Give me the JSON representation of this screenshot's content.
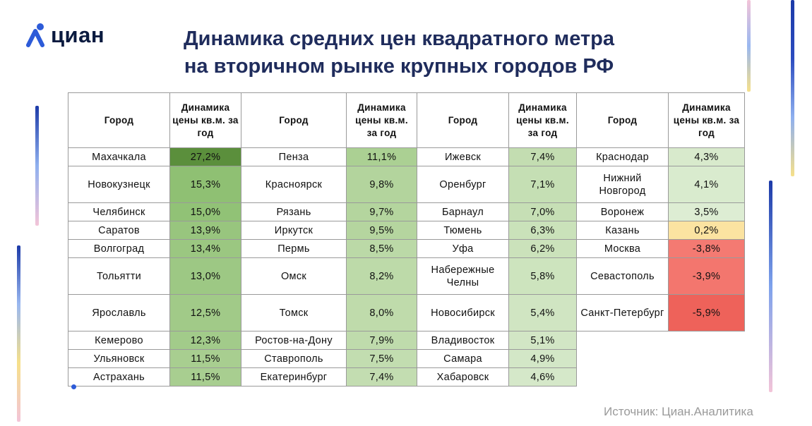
{
  "brand": {
    "name": "циан"
  },
  "title": {
    "line1": "Динамика средних цен квадратного метра",
    "line2": "на вторичном рынке крупных городов РФ"
  },
  "table": {
    "header_city": "Город",
    "header_change": "Динамика цены кв.м. за год",
    "columns": [
      [
        {
          "city": "Махачкала",
          "value": "27,2%",
          "color": "#5b8f3c"
        },
        {
          "city": "Новокузнецк",
          "value": "15,3%",
          "color": "#8fc073"
        },
        {
          "city": "Челябинск",
          "value": "15,0%",
          "color": "#91c276"
        },
        {
          "city": "Саратов",
          "value": "13,9%",
          "color": "#98c57e"
        },
        {
          "city": "Волгоград",
          "value": "13,4%",
          "color": "#9bc781"
        },
        {
          "city": "Тольятти",
          "value": "13,0%",
          "color": "#9dc884"
        },
        {
          "city": "Ярославль",
          "value": "12,5%",
          "color": "#a1ca88"
        },
        {
          "city": "Кемерово",
          "value": "12,3%",
          "color": "#a2cb8a"
        },
        {
          "city": "Ульяновск",
          "value": "11,5%",
          "color": "#a8ce90"
        },
        {
          "city": "Астрахань",
          "value": "11,5%",
          "color": "#a8ce90"
        }
      ],
      [
        {
          "city": "Пенза",
          "value": "11,1%",
          "color": "#abd093"
        },
        {
          "city": "Красноярск",
          "value": "9,8%",
          "color": "#b3d49d"
        },
        {
          "city": "Рязань",
          "value": "9,7%",
          "color": "#b4d59e"
        },
        {
          "city": "Иркутск",
          "value": "9,5%",
          "color": "#b5d59f"
        },
        {
          "city": "Пермь",
          "value": "8,5%",
          "color": "#bbd9a7"
        },
        {
          "city": "Омск",
          "value": "8,2%",
          "color": "#bddaa9"
        },
        {
          "city": "Томск",
          "value": "8,0%",
          "color": "#bfdbab"
        },
        {
          "city": "Ростов-на-Дону",
          "value": "7,9%",
          "color": "#bfdbac"
        },
        {
          "city": "Ставрополь",
          "value": "7,5%",
          "color": "#c2ddb0"
        },
        {
          "city": "Екатеринбург",
          "value": "7,4%",
          "color": "#c3ddb1"
        }
      ],
      [
        {
          "city": "Ижевск",
          "value": "7,4%",
          "color": "#c3ddb1"
        },
        {
          "city": "Оренбург",
          "value": "7,1%",
          "color": "#c5dfb4"
        },
        {
          "city": "Барнаул",
          "value": "7,0%",
          "color": "#c6dfb5"
        },
        {
          "city": "Тюмень",
          "value": "6,3%",
          "color": "#cae2ba"
        },
        {
          "city": "Уфа",
          "value": "6,2%",
          "color": "#cbe2bb"
        },
        {
          "city": "Набережные Челны",
          "value": "5,8%",
          "color": "#cde4be"
        },
        {
          "city": "Новосибирск",
          "value": "5,4%",
          "color": "#d0e5c2"
        },
        {
          "city": "Владивосток",
          "value": "5,1%",
          "color": "#d2e6c5"
        },
        {
          "city": "Самара",
          "value": "4,9%",
          "color": "#d3e7c7"
        },
        {
          "city": "Хабаровск",
          "value": "4,6%",
          "color": "#d5e8c9"
        }
      ],
      [
        {
          "city": "Краснодар",
          "value": "4,3%",
          "color": "#d8eacc"
        },
        {
          "city": "Нижний Новгород",
          "value": "4,1%",
          "color": "#d9ebce"
        },
        {
          "city": "Воронеж",
          "value": "3,5%",
          "color": "#ddedd3"
        },
        {
          "city": "Казань",
          "value": "0,2%",
          "color": "#fbe3a1"
        },
        {
          "city": "Москва",
          "value": "-3,8%",
          "color": "#f47a72"
        },
        {
          "city": "Севастополь",
          "value": "-3,9%",
          "color": "#f3766e"
        },
        {
          "city": "Санкт-Петербург",
          "value": "-5,9%",
          "color": "#ee625a"
        }
      ]
    ]
  },
  "source": "Источник: Циан.Аналитика"
}
